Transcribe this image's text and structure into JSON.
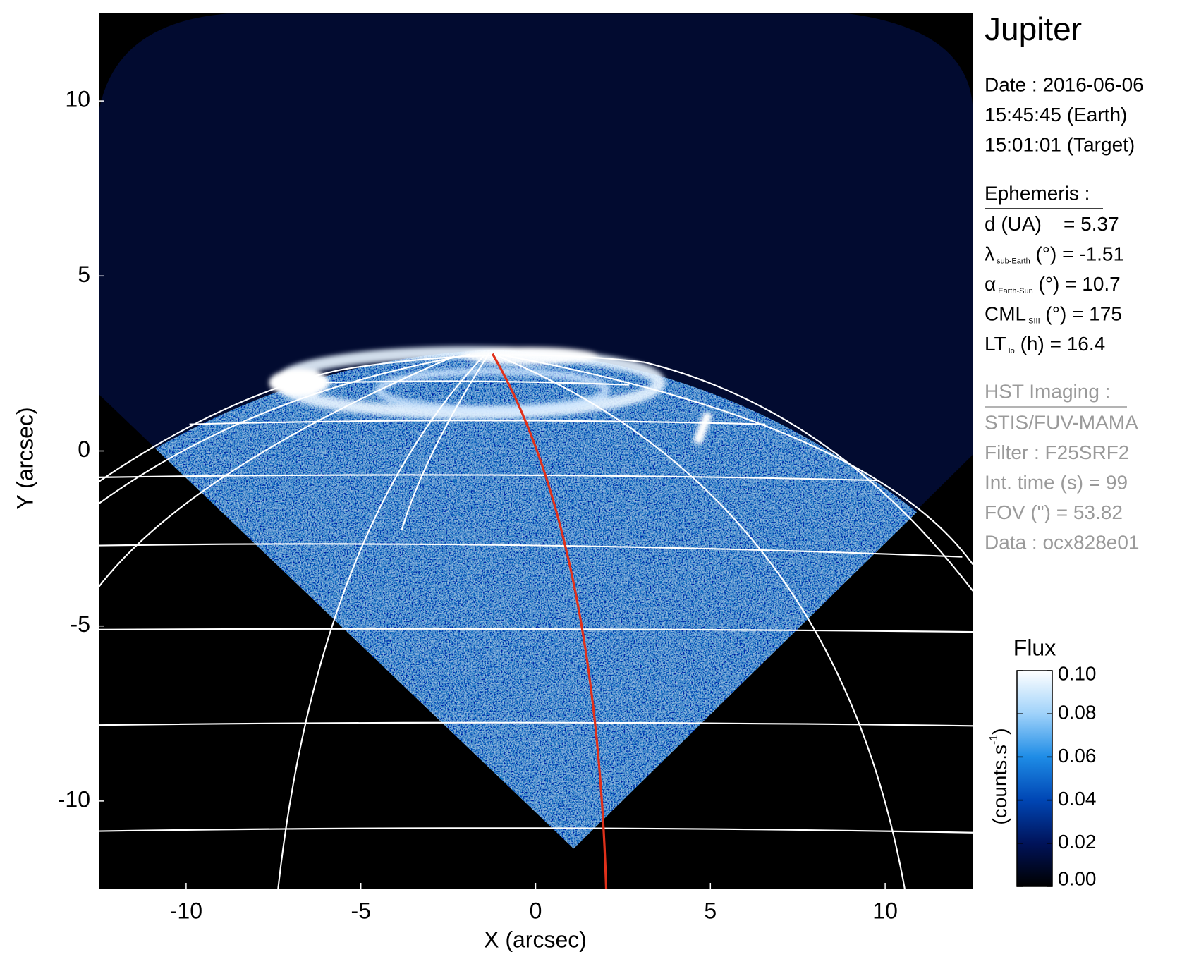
{
  "chart_data": {
    "type": "image",
    "title": "Jupiter",
    "xlabel": "X (arcsec)",
    "ylabel": "Y (arcsec)",
    "xlim": [
      -12.5,
      12.5
    ],
    "ylim": [
      -12.5,
      12.5
    ],
    "xticks": [
      -10,
      -5,
      0,
      5,
      10
    ],
    "yticks": [
      -10,
      -5,
      0,
      5,
      10
    ],
    "colorbar": {
      "title": "Flux",
      "label": {
        "text": "(counts.s",
        "sup": "-1",
        "end": ")"
      },
      "lim": [
        0,
        0.1
      ],
      "ticks": [
        {
          "value": 0,
          "label": "0.00"
        },
        {
          "value": 0.02,
          "label": "0.02"
        },
        {
          "value": 0.04,
          "label": "0.04"
        },
        {
          "value": 0.06,
          "label": "0.06"
        },
        {
          "value": 0.08,
          "label": "0.08"
        },
        {
          "value": 0.1,
          "label": "0.10"
        }
      ],
      "colors": [
        "#000000",
        "#00135a",
        "#0046b4",
        "#1e8ce6",
        "#9fd2fa",
        "#ffffff"
      ]
    },
    "annotations": {
      "date": [
        "Date : 2016-06-06",
        "15:45:45 (Earth)",
        "15:01:01 (Target)"
      ],
      "ephemeris": {
        "heading": "Ephemeris :",
        "lines": [
          {
            "symbol": "d (UA)    = 5.37"
          },
          {
            "symbol": "λ",
            "sub": "sub-Earth",
            "rest": " (°) = -1.51"
          },
          {
            "symbol": "α",
            "sub": "Earth-Sun",
            "rest": " (°) = 10.7"
          },
          {
            "symbol": "CML",
            "sub": "SIII",
            "rest": " (°) = 175"
          },
          {
            "symbol": "LT",
            "sub": "Io",
            "rest": " (h) = 16.4"
          }
        ]
      },
      "imaging": {
        "heading": "HST Imaging :",
        "lines": [
          "STIS/FUV-MAMA",
          "Filter : F25SRF2",
          "Int. time (s) = 99",
          "FOV (\") = 53.82",
          "Data : ocx828e01"
        ]
      }
    }
  }
}
